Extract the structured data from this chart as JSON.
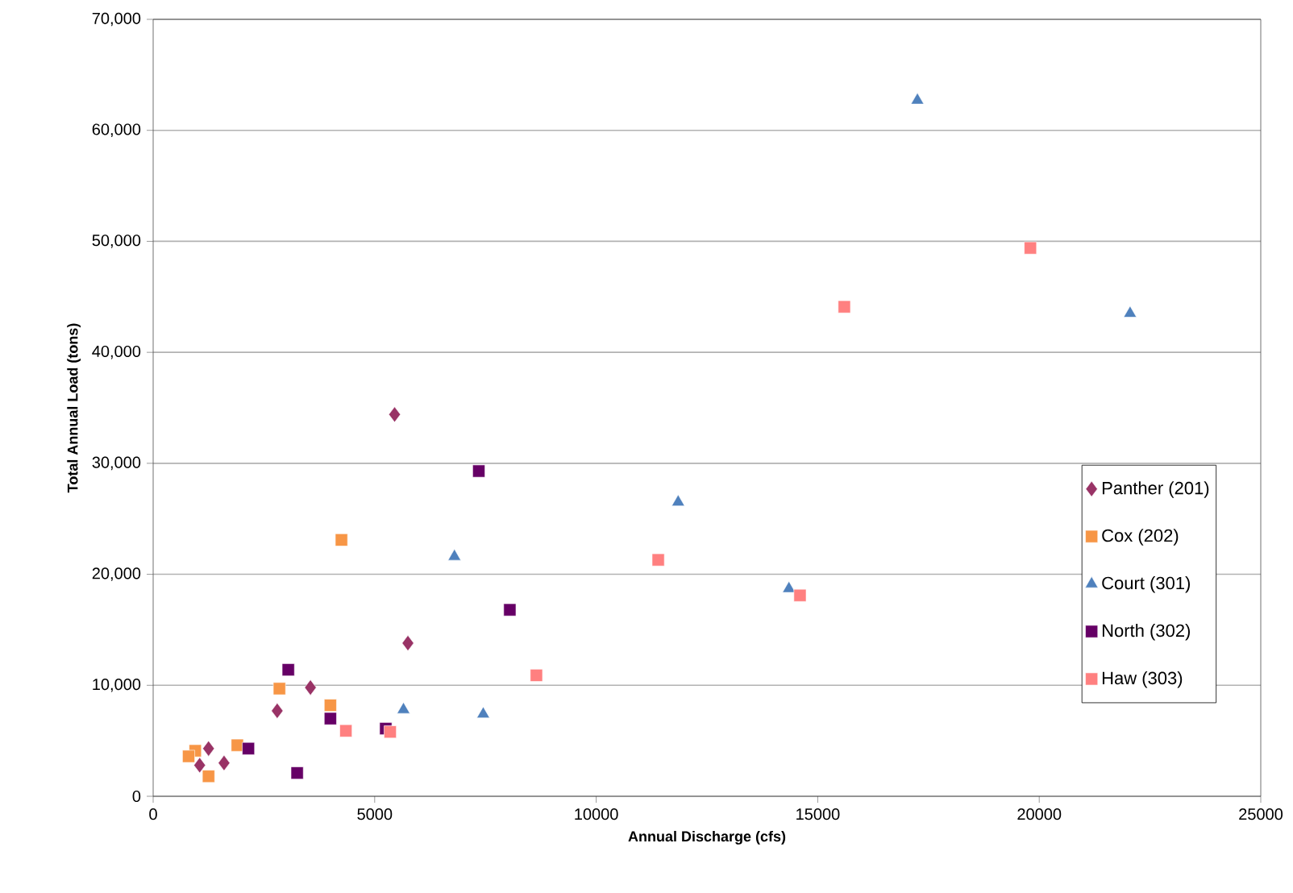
{
  "chart_data": {
    "type": "scatter",
    "xlabel": "Annual Discharge (cfs)",
    "ylabel": "Total Annual Load (tons)",
    "xlim": [
      0,
      25000
    ],
    "xticks": [
      0,
      5000,
      10000,
      15000,
      20000,
      25000
    ],
    "ylim": [
      0,
      70000
    ],
    "yticks": [
      {
        "value": 0,
        "label": "0"
      },
      {
        "value": 10000,
        "label": "10,000"
      },
      {
        "value": 20000,
        "label": "20,000"
      },
      {
        "value": 30000,
        "label": "30,000"
      },
      {
        "value": 40000,
        "label": "40,000"
      },
      {
        "value": 50000,
        "label": "50,000"
      },
      {
        "value": 60000,
        "label": "60,000"
      },
      {
        "value": 70000,
        "label": "70,000"
      }
    ],
    "grid": "y",
    "legend": "right",
    "series": [
      {
        "name": "Panther (201)",
        "color": "#993366",
        "marker": "diamond",
        "x": [
          5450,
          5750,
          3550,
          2800,
          1250,
          1600,
          1050
        ],
        "values": [
          34400,
          13800,
          9800,
          7700,
          4300,
          3000,
          2800
        ]
      },
      {
        "name": "Cox (202)",
        "color": "#f79646",
        "marker": "square",
        "x": [
          4250,
          2850,
          4000,
          1900,
          950,
          800,
          1250
        ],
        "values": [
          23100,
          9700,
          8200,
          4600,
          4100,
          3600,
          1800
        ]
      },
      {
        "name": "Court (301)",
        "color": "#4f81bd",
        "marker": "triangle",
        "x": [
          17250,
          22050,
          11850,
          6800,
          14350,
          5650,
          7450
        ],
        "values": [
          62700,
          43500,
          26500,
          21600,
          18700,
          7800,
          7400
        ]
      },
      {
        "name": "North (302)",
        "color": "#660066",
        "marker": "square",
        "x": [
          7350,
          8050,
          3050,
          4000,
          5250,
          2150,
          3250
        ],
        "values": [
          29300,
          16800,
          11400,
          7000,
          6100,
          4300,
          2100
        ]
      },
      {
        "name": "Haw (303)",
        "color": "#ff8080",
        "marker": "square",
        "x": [
          19800,
          15600,
          11400,
          14600,
          8650,
          4350,
          5350
        ],
        "values": [
          49400,
          44100,
          21300,
          18100,
          10900,
          5900,
          5800
        ]
      }
    ]
  }
}
